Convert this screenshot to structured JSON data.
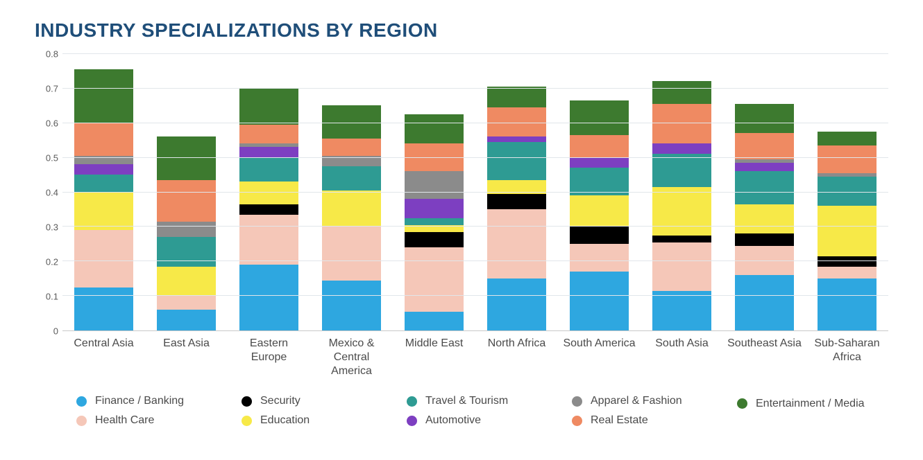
{
  "title": "INDUSTRY SPECIALIZATIONS BY REGION",
  "chart": {
    "type": "stacked-bar",
    "ylim": [
      0,
      0.8
    ],
    "ytick_step": 0.1,
    "yticks": [
      "0",
      "0.1",
      "0.2",
      "0.3",
      "0.4",
      "0.5",
      "0.6",
      "0.7",
      "0.8"
    ],
    "background_color": "#ffffff",
    "grid_color": "#e1e6ea",
    "axis_color": "#c8c8c8",
    "bar_width_ratio": 0.72,
    "title_color": "#1f4e79",
    "title_fontsize": 28,
    "label_fontsize": 16,
    "tick_fontsize": 13,
    "label_color": "#4a4a4a",
    "series": [
      {
        "key": "finance",
        "label": "Finance / Banking",
        "color": "#2ea7e0"
      },
      {
        "key": "healthcare",
        "label": "Health Care",
        "color": "#f5c7b8"
      },
      {
        "key": "security",
        "label": "Security",
        "color": "#000000"
      },
      {
        "key": "education",
        "label": "Education",
        "color": "#f7e948"
      },
      {
        "key": "travel",
        "label": "Travel & Tourism",
        "color": "#2e9b93"
      },
      {
        "key": "automotive",
        "label": "Automotive",
        "color": "#7d3fc1"
      },
      {
        "key": "apparel",
        "label": "Apparel & Fashion",
        "color": "#8b8b8b"
      },
      {
        "key": "realestate",
        "label": "Real Estate",
        "color": "#ef8a62"
      },
      {
        "key": "entertainment",
        "label": "Entertainment / Media",
        "color": "#3d7a2f"
      }
    ],
    "categories": [
      {
        "label": "Central Asia",
        "values": {
          "finance": 0.125,
          "healthcare": 0.165,
          "security": 0.0,
          "education": 0.11,
          "travel": 0.05,
          "automotive": 0.03,
          "apparel": 0.025,
          "realestate": 0.095,
          "entertainment": 0.155
        }
      },
      {
        "label": "East Asia",
        "values": {
          "finance": 0.06,
          "healthcare": 0.04,
          "security": 0.0,
          "education": 0.085,
          "travel": 0.085,
          "automotive": 0.0,
          "apparel": 0.045,
          "realestate": 0.12,
          "entertainment": 0.125
        }
      },
      {
        "label": "Eastern Europe",
        "values": {
          "finance": 0.19,
          "healthcare": 0.145,
          "security": 0.03,
          "education": 0.065,
          "travel": 0.07,
          "automotive": 0.03,
          "apparel": 0.01,
          "realestate": 0.055,
          "entertainment": 0.105
        }
      },
      {
        "label": "Mexico & Central America",
        "values": {
          "finance": 0.145,
          "healthcare": 0.155,
          "security": 0.0,
          "education": 0.105,
          "travel": 0.07,
          "automotive": 0.0,
          "apparel": 0.03,
          "realestate": 0.05,
          "entertainment": 0.095
        }
      },
      {
        "label": "Middle East",
        "values": {
          "finance": 0.055,
          "healthcare": 0.185,
          "security": 0.045,
          "education": 0.02,
          "travel": 0.02,
          "automotive": 0.055,
          "apparel": 0.08,
          "realestate": 0.08,
          "entertainment": 0.085
        }
      },
      {
        "label": "North Africa",
        "values": {
          "finance": 0.15,
          "healthcare": 0.2,
          "security": 0.045,
          "education": 0.04,
          "travel": 0.11,
          "automotive": 0.015,
          "apparel": 0.0,
          "realestate": 0.085,
          "entertainment": 0.06
        }
      },
      {
        "label": "South America",
        "values": {
          "finance": 0.17,
          "healthcare": 0.08,
          "security": 0.05,
          "education": 0.09,
          "travel": 0.08,
          "automotive": 0.03,
          "apparel": 0.0,
          "realestate": 0.065,
          "entertainment": 0.1
        }
      },
      {
        "label": "South Asia",
        "values": {
          "finance": 0.115,
          "healthcare": 0.14,
          "security": 0.02,
          "education": 0.14,
          "travel": 0.095,
          "automotive": 0.03,
          "apparel": 0.0,
          "realestate": 0.115,
          "entertainment": 0.065
        }
      },
      {
        "label": "Southeast Asia",
        "values": {
          "finance": 0.16,
          "healthcare": 0.085,
          "security": 0.035,
          "education": 0.085,
          "travel": 0.095,
          "automotive": 0.025,
          "apparel": 0.01,
          "realestate": 0.075,
          "entertainment": 0.085
        }
      },
      {
        "label": "Sub-Saharan Africa",
        "values": {
          "finance": 0.15,
          "healthcare": 0.035,
          "security": 0.03,
          "education": 0.145,
          "travel": 0.085,
          "automotive": 0.0,
          "apparel": 0.01,
          "realestate": 0.08,
          "entertainment": 0.04
        }
      }
    ],
    "legend_order": [
      "finance",
      "healthcare",
      "security",
      "education",
      "travel",
      "automotive",
      "apparel",
      "realestate",
      "entertainment"
    ]
  }
}
